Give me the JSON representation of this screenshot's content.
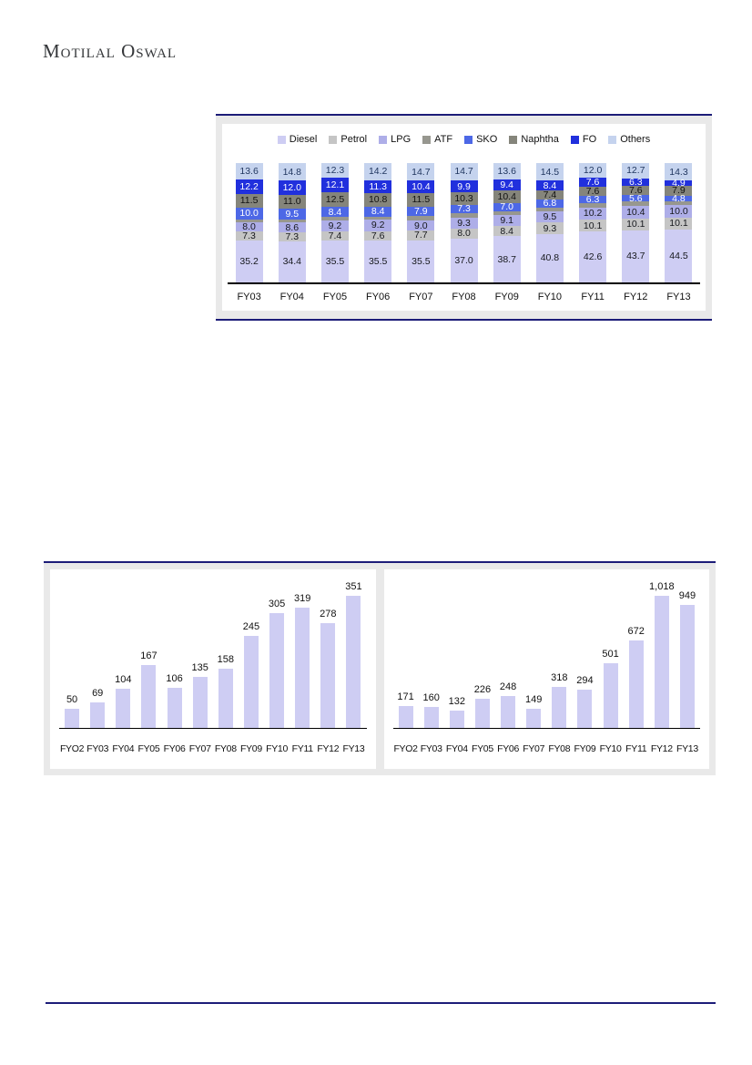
{
  "page": {
    "brand": "Motilal Oswal"
  },
  "colors": {
    "rule_navy": "#1c1c78",
    "frame_gray": "#e9e9e9",
    "axis": "#000000",
    "mini_bar": "#cecdf3"
  },
  "chart_data": [
    {
      "type": "bar",
      "variant": "stacked-column",
      "title": "",
      "categories": [
        "FY03",
        "FY04",
        "FY05",
        "FY06",
        "FY07",
        "FY08",
        "FY09",
        "FY10",
        "FY11",
        "FY12",
        "FY13"
      ],
      "ylim": [
        0,
        100
      ],
      "grid": false,
      "legend_position": "top",
      "series": [
        {
          "name": "Diesel",
          "color": "#cecdf3",
          "label_text_color": "#16181d",
          "values": [
            35.2,
            34.4,
            35.5,
            35.5,
            35.5,
            37.0,
            38.7,
            40.8,
            42.6,
            43.7,
            44.5
          ],
          "labels": [
            "35.2",
            "34.4",
            "35.5",
            "35.5",
            "35.5",
            "37.0",
            "38.7",
            "40.8",
            "42.6",
            "43.7",
            "44.5"
          ]
        },
        {
          "name": "Petrol",
          "color": "#c5c5c5",
          "label_text_color": "#16181d",
          "values": [
            7.3,
            7.3,
            7.4,
            7.6,
            7.7,
            8.0,
            8.4,
            9.3,
            10.1,
            10.1,
            10.1
          ],
          "labels": [
            "7.3",
            "7.3",
            "7.4",
            "7.6",
            "7.7",
            "8.0",
            "8.4",
            "9.3",
            "10.1",
            "10.1",
            "10.1"
          ]
        },
        {
          "name": "LPG",
          "color": "#aeaee8",
          "label_text_color": "#16181d",
          "values": [
            8.0,
            8.6,
            9.2,
            9.2,
            9.0,
            9.3,
            9.1,
            9.5,
            10.2,
            10.4,
            10.0
          ],
          "labels": [
            "8.0",
            "8.6",
            "9.2",
            "9.2",
            "9.0",
            "9.3",
            "9.1",
            "9.5",
            "10.2",
            "10.4",
            "10.0"
          ]
        },
        {
          "name": "ATF",
          "color": "#97978f",
          "label_text_color": "#16181d",
          "values": [
            2.2,
            2.4,
            2.6,
            3.0,
            3.3,
            3.5,
            3.4,
            3.3,
            3.6,
            3.6,
            3.5
          ],
          "labels_visible": false,
          "note": "segment drawn but unlabeled in source; values inferred so each stack totals 100"
        },
        {
          "name": "SKO",
          "color": "#4d68e6",
          "label_text_color": "#ffffff",
          "values": [
            10.0,
            9.5,
            8.4,
            8.4,
            7.9,
            7.3,
            7.0,
            6.8,
            6.3,
            5.6,
            4.8
          ],
          "labels": [
            "10.0",
            "9.5",
            "8.4",
            "8.4",
            "7.9",
            "7.3",
            "7.0",
            "6.8",
            "6.3",
            "5.6",
            "4.8"
          ]
        },
        {
          "name": "Naphtha",
          "color": "#85857b",
          "label_text_color": "#111111",
          "values": [
            11.5,
            11.0,
            12.5,
            10.8,
            11.5,
            10.3,
            10.4,
            7.4,
            7.6,
            7.6,
            7.9
          ],
          "labels": [
            "11.5",
            "11.0",
            "12.5",
            "10.8",
            "11.5",
            "10.3",
            "10.4",
            "7.4",
            "7.6",
            "7.6",
            "7.9"
          ]
        },
        {
          "name": "FO",
          "color": "#2130dd",
          "label_text_color": "#ffffff",
          "values": [
            12.2,
            12.0,
            12.1,
            11.3,
            10.4,
            9.9,
            9.4,
            8.4,
            7.6,
            6.3,
            4.9
          ],
          "labels": [
            "12.2",
            "12.0",
            "12.1",
            "11.3",
            "10.4",
            "9.9",
            "9.4",
            "8.4",
            "7.6",
            "6.3",
            "4.9"
          ]
        },
        {
          "name": "Others",
          "color": "#c5d3ee",
          "label_text_color": "#1f355e",
          "values": [
            13.6,
            14.8,
            12.3,
            14.2,
            14.7,
            14.7,
            13.6,
            14.5,
            12.0,
            12.7,
            14.3
          ],
          "labels": [
            "13.6",
            "14.8",
            "12.3",
            "14.2",
            "14.7",
            "14.7",
            "13.6",
            "14.5",
            "12.0",
            "12.7",
            "14.3"
          ]
        }
      ]
    },
    {
      "type": "bar",
      "title": "",
      "categories": [
        "FYO2",
        "FY03",
        "FY04",
        "FY05",
        "FY06",
        "FY07",
        "FY08",
        "FY09",
        "FY10",
        "FY11",
        "FY12",
        "FY13"
      ],
      "values": [
        50,
        69,
        104,
        167,
        106,
        135,
        158,
        245,
        305,
        319,
        278,
        351
      ],
      "labels": [
        "50",
        "69",
        "104",
        "167",
        "106",
        "135",
        "158",
        "245",
        "305",
        "319",
        "278",
        "351"
      ],
      "grid": false
    },
    {
      "type": "bar",
      "title": "",
      "categories": [
        "FYO2",
        "FY03",
        "FY04",
        "FY05",
        "FY06",
        "FY07",
        "FY08",
        "FY09",
        "FY10",
        "FY11",
        "FY12",
        "FY13"
      ],
      "values": [
        171,
        160,
        132,
        226,
        248,
        149,
        318,
        294,
        501,
        672,
        1018,
        949
      ],
      "labels": [
        "171",
        "160",
        "132",
        "226",
        "248",
        "149",
        "318",
        "294",
        "501",
        "672",
        "1,018",
        "949"
      ],
      "grid": false
    }
  ]
}
